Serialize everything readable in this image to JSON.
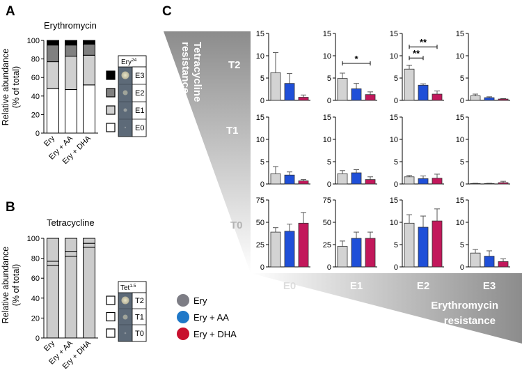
{
  "panels": {
    "A": {
      "letter": "A",
      "title": "Erythromycin",
      "ylabel_line1": "Relative abundance",
      "ylabel_line2": "(% of total)",
      "legend_header_base": "Ery",
      "legend_header_sup": "24",
      "legend_items": [
        "E3",
        "E2",
        "E1",
        "E0"
      ]
    },
    "B": {
      "letter": "B",
      "title": "Tetracycline",
      "ylabel_line1": "Relative abundance",
      "ylabel_line2": "(% of total)",
      "legend_header_base": "Tet",
      "legend_header_sup": "1.5",
      "legend_items": [
        "T2",
        "T1",
        "T0"
      ]
    },
    "C": {
      "letter": "C",
      "tet_label_line1": "Tetracycline",
      "tet_label_line2": "resistance",
      "ery_label_line1": "Erythromycin",
      "ery_label_line2": "resistance",
      "row_labels": [
        "T2",
        "T1",
        "T0"
      ],
      "col_labels": [
        "E0",
        "E1",
        "E2",
        "E3"
      ],
      "legend": [
        "Ery",
        "Ery + AA",
        "Ery + DHA"
      ]
    }
  },
  "colors": {
    "E3": "#000000",
    "E2": "#808080",
    "E1": "#d0d0d0",
    "E0": "#ffffff",
    "Ery": "#d3d3d3",
    "Ery + AA": "#1f4fd8",
    "Ery + DHA": "#c2185b",
    "legend_Ery": "#7d7d85",
    "legend_AA": "#1f78c8",
    "legend_DHA": "#c8102e"
  },
  "chart_data": [
    {
      "type": "bar",
      "stacked": true,
      "title": "Erythromycin",
      "ylabel": "Relative abundance (% of total)",
      "categories": [
        "Ery",
        "Ery + AA",
        "Ery + DHA"
      ],
      "ylim": [
        0,
        100
      ],
      "yticks": [
        0,
        20,
        40,
        60,
        80,
        100
      ],
      "series": [
        {
          "name": "E0",
          "values": [
            48,
            47,
            52
          ]
        },
        {
          "name": "E1",
          "values": [
            29,
            36,
            32
          ]
        },
        {
          "name": "E2",
          "values": [
            18,
            12,
            12
          ]
        },
        {
          "name": "E3",
          "values": [
            5,
            5,
            4
          ]
        }
      ]
    },
    {
      "type": "bar",
      "stacked": true,
      "title": "Tetracycline",
      "ylabel": "Relative abundance (% of total)",
      "categories": [
        "Ery",
        "Ery + AA",
        "Ery + DHA"
      ],
      "ylim": [
        0,
        100
      ],
      "yticks": [
        0,
        20,
        40,
        60,
        80,
        100
      ],
      "series": [
        {
          "name": "T0",
          "values": [
            73,
            82,
            91
          ]
        },
        {
          "name": "T1",
          "values": [
            4,
            5,
            4
          ]
        },
        {
          "name": "T2",
          "values": [
            23,
            13,
            5
          ]
        }
      ]
    },
    {
      "type": "bar",
      "grid": "3x4",
      "categories": [
        "Ery",
        "Ery + AA",
        "Ery + DHA"
      ],
      "rows": [
        "T2",
        "T1",
        "T0"
      ],
      "cols": [
        "E0",
        "E1",
        "E2",
        "E3"
      ],
      "cells": [
        {
          "row": "T2",
          "col": "E0",
          "ylim": [
            0,
            15
          ],
          "yticks": [
            "0",
            "5",
            "10",
            "15"
          ],
          "values": [
            6.2,
            3.8,
            0.7
          ],
          "errors": [
            4.5,
            2.2,
            0.5
          ],
          "annotations": []
        },
        {
          "row": "T2",
          "col": "E1",
          "ylim": [
            0,
            15
          ],
          "yticks": [
            "0",
            "5",
            "10",
            "15"
          ],
          "values": [
            4.9,
            2.6,
            1.3
          ],
          "errors": [
            1.2,
            1.2,
            0.6
          ],
          "annotations": [
            {
              "from": 0,
              "to": 2,
              "y": 8.3,
              "text": "*"
            }
          ]
        },
        {
          "row": "T2",
          "col": "E2",
          "ylim": [
            0,
            15
          ],
          "yticks": [
            "0",
            "5",
            "10",
            "15"
          ],
          "values": [
            7.0,
            3.4,
            1.4
          ],
          "errors": [
            0.9,
            0.3,
            0.7
          ],
          "annotations": [
            {
              "from": 0,
              "to": 2,
              "y": 12.0,
              "text": "**"
            },
            {
              "from": 0,
              "to": 1,
              "y": 9.5,
              "text": "**"
            }
          ]
        },
        {
          "row": "T2",
          "col": "E3",
          "ylim": [
            0,
            15
          ],
          "yticks": [
            "0",
            "5",
            "10",
            "15"
          ],
          "values": [
            1.0,
            0.6,
            0.3
          ],
          "errors": [
            0.4,
            0.2,
            0.1
          ],
          "annotations": []
        },
        {
          "row": "T1",
          "col": "E0",
          "ylim": [
            0,
            15
          ],
          "yticks": [
            "0",
            "5",
            "10",
            "15"
          ],
          "values": [
            2.3,
            2.0,
            0.7
          ],
          "errors": [
            1.6,
            0.7,
            0.3
          ],
          "annotations": []
        },
        {
          "row": "T1",
          "col": "E1",
          "ylim": [
            0,
            15
          ],
          "yticks": [
            "0",
            "5",
            "10",
            "15"
          ],
          "values": [
            2.3,
            2.5,
            1.0
          ],
          "errors": [
            0.7,
            0.7,
            0.6
          ],
          "annotations": []
        },
        {
          "row": "T1",
          "col": "E2",
          "ylim": [
            0,
            15
          ],
          "yticks": [
            "0",
            "5",
            "10",
            "15"
          ],
          "values": [
            1.6,
            1.2,
            1.3
          ],
          "errors": [
            0.3,
            0.6,
            0.9
          ],
          "annotations": []
        },
        {
          "row": "T1",
          "col": "E3",
          "ylim": [
            0,
            15
          ],
          "yticks": [
            "0",
            "5",
            "10",
            "15"
          ],
          "values": [
            0.1,
            0.1,
            0.3
          ],
          "errors": [
            0.05,
            0.05,
            0.3
          ],
          "annotations": []
        },
        {
          "row": "T0",
          "col": "E0",
          "ylim": [
            0,
            75
          ],
          "yticks": [
            "0",
            "25",
            "50",
            "75"
          ],
          "values": [
            39,
            40,
            49
          ],
          "errors": [
            5,
            8,
            12
          ],
          "annotations": []
        },
        {
          "row": "T0",
          "col": "E1",
          "ylim": [
            0,
            75
          ],
          "yticks": [
            "0",
            "25",
            "50",
            "75"
          ],
          "values": [
            23,
            32,
            32
          ],
          "errors": [
            6,
            7,
            7
          ],
          "annotations": []
        },
        {
          "row": "T0",
          "col": "E2",
          "ylim": [
            0,
            15
          ],
          "yticks": [
            "0",
            "5",
            "10",
            "15"
          ],
          "values": [
            9.8,
            8.9,
            10.3
          ],
          "errors": [
            1.9,
            2.5,
            2.7
          ],
          "annotations": []
        },
        {
          "row": "T0",
          "col": "E3",
          "ylim": [
            0,
            15
          ],
          "yticks": [
            "0",
            "5",
            "10",
            "15"
          ],
          "values": [
            3.1,
            2.4,
            1.2
          ],
          "errors": [
            0.8,
            1.2,
            0.6
          ],
          "annotations": []
        }
      ]
    }
  ]
}
